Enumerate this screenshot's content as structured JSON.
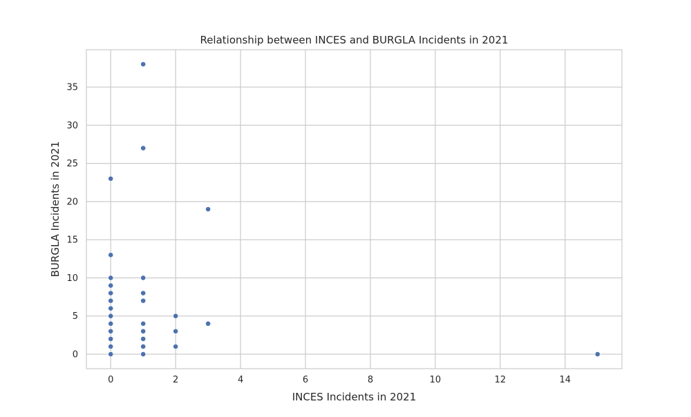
{
  "chart_data": {
    "type": "scatter",
    "title": "Relationship between INCES and BURGLA Incidents in 2021",
    "xlabel": "INCES Incidents in 2021",
    "ylabel": "BURGLA Incidents in 2021",
    "xlim": [
      -0.75,
      15.75
    ],
    "ylim": [
      -1.9,
      39.9
    ],
    "xticks": [
      0,
      2,
      4,
      6,
      8,
      10,
      12,
      14
    ],
    "yticks": [
      0,
      5,
      10,
      15,
      20,
      25,
      30,
      35
    ],
    "grid": true,
    "legend": "none",
    "marker_color": "#4c72b0",
    "grid_color": "#cccccc",
    "points": [
      {
        "x": 0,
        "y": 0
      },
      {
        "x": 0,
        "y": 1
      },
      {
        "x": 0,
        "y": 2
      },
      {
        "x": 0,
        "y": 3
      },
      {
        "x": 0,
        "y": 4
      },
      {
        "x": 0,
        "y": 5
      },
      {
        "x": 0,
        "y": 6
      },
      {
        "x": 0,
        "y": 7
      },
      {
        "x": 0,
        "y": 8
      },
      {
        "x": 0,
        "y": 9
      },
      {
        "x": 0,
        "y": 10
      },
      {
        "x": 0,
        "y": 13
      },
      {
        "x": 0,
        "y": 23
      },
      {
        "x": 1,
        "y": 0
      },
      {
        "x": 1,
        "y": 1
      },
      {
        "x": 1,
        "y": 2
      },
      {
        "x": 1,
        "y": 3
      },
      {
        "x": 1,
        "y": 4
      },
      {
        "x": 1,
        "y": 7
      },
      {
        "x": 1,
        "y": 8
      },
      {
        "x": 1,
        "y": 10
      },
      {
        "x": 1,
        "y": 27
      },
      {
        "x": 1,
        "y": 38
      },
      {
        "x": 2,
        "y": 1
      },
      {
        "x": 2,
        "y": 3
      },
      {
        "x": 2,
        "y": 5
      },
      {
        "x": 3,
        "y": 4
      },
      {
        "x": 3,
        "y": 19
      },
      {
        "x": 15,
        "y": 0
      }
    ]
  }
}
